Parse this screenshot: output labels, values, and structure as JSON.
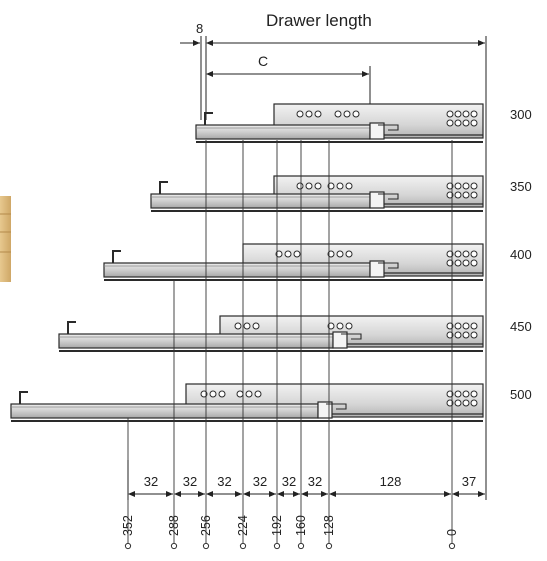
{
  "labels": {
    "drawer_length": "Drawer length",
    "offset": "8",
    "c": "C"
  },
  "slides": [
    {
      "length": "300"
    },
    {
      "length": "350"
    },
    {
      "length": "400"
    },
    {
      "length": "450"
    },
    {
      "length": "500"
    }
  ],
  "spacings": [
    "32",
    "32",
    "32",
    "32",
    "32",
    "32",
    "128",
    "37"
  ],
  "hole_positions": [
    "352",
    "288",
    "256",
    "224",
    "192",
    "160",
    "128",
    "0"
  ],
  "colors": {
    "line": "#2a2a2a",
    "metal_light": "#e6e6e6",
    "metal_mid": "#c8c8c8",
    "metal_dark": "#9a9a9a",
    "wood": "#d9b77a"
  }
}
